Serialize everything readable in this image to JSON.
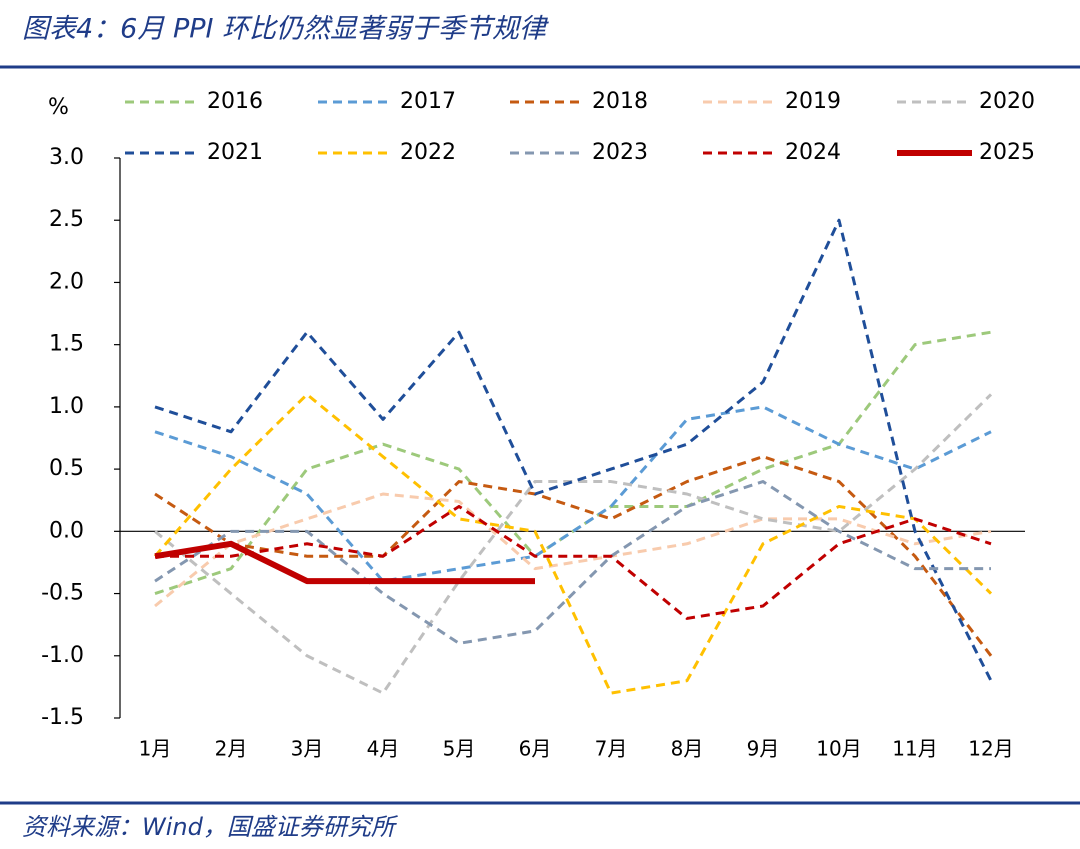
{
  "chart_data": {
    "type": "line",
    "title": "图表4：6月 PPI 环比仍然显著弱于季节规律",
    "ylabel": "%",
    "source": "资料来源：Wind，国盛证券研究所",
    "categories": [
      "1月",
      "2月",
      "3月",
      "4月",
      "5月",
      "6月",
      "7月",
      "8月",
      "9月",
      "10月",
      "11月",
      "12月"
    ],
    "ylim": [
      -1.5,
      3.0
    ],
    "yticks": [
      {
        "value": 3.0,
        "label": "3.0"
      },
      2.5,
      {
        "value": 2.0,
        "label": "2.0"
      },
      1.5,
      {
        "value": 1.0,
        "label": "1.0"
      },
      0.5,
      {
        "value": 0.0,
        "label": "0.0"
      },
      -0.5,
      {
        "value": -1.0,
        "label": "-1.0"
      },
      -1.5
    ],
    "series": [
      {
        "name": "2016",
        "color": "#9dc97b",
        "line_style": "dashed",
        "values": [
          -0.5,
          -0.3,
          0.5,
          0.7,
          0.5,
          -0.2,
          0.2,
          0.2,
          0.5,
          0.7,
          1.5,
          1.6
        ]
      },
      {
        "name": "2017",
        "color": "#5b9bd5",
        "line_style": "dashed",
        "values": [
          0.8,
          0.6,
          0.3,
          -0.4,
          -0.3,
          -0.2,
          0.2,
          0.9,
          1.0,
          0.7,
          0.5,
          0.8
        ]
      },
      {
        "name": "2018",
        "color": "#c55a11",
        "line_style": "dashed",
        "values": [
          0.3,
          -0.1,
          -0.2,
          -0.2,
          0.4,
          0.3,
          0.1,
          0.4,
          0.6,
          0.4,
          -0.2,
          -1.0
        ]
      },
      {
        "name": "2019",
        "color": "#f8cbad",
        "line_style": "dashed",
        "values": [
          -0.6,
          -0.1,
          0.1,
          0.3,
          0.24,
          -0.3,
          -0.2,
          -0.1,
          0.1,
          0.1,
          -0.1,
          0.0
        ]
      },
      {
        "name": "2020",
        "color": "#bfbfbf",
        "line_style": "dashed",
        "values": [
          0.0,
          -0.5,
          -1.0,
          -1.3,
          -0.4,
          0.4,
          0.4,
          0.3,
          0.1,
          0.0,
          0.5,
          1.1
        ]
      },
      {
        "name": "2021",
        "color": "#1f4e99",
        "line_style": "dashed",
        "values": [
          1.0,
          0.8,
          1.6,
          0.9,
          1.6,
          0.3,
          0.5,
          0.7,
          1.2,
          2.5,
          0.0,
          -1.2
        ]
      },
      {
        "name": "2022",
        "color": "#ffc000",
        "line_style": "dashed",
        "values": [
          -0.2,
          0.5,
          1.1,
          0.6,
          0.1,
          0.0,
          -1.3,
          -1.2,
          -0.1,
          0.2,
          0.1,
          -0.5
        ]
      },
      {
        "name": "2023",
        "color": "#8497b0",
        "line_style": "dashed",
        "values": [
          -0.4,
          0.0,
          0.0,
          -0.5,
          -0.9,
          -0.8,
          -0.2,
          0.2,
          0.4,
          0.0,
          -0.3,
          -0.3
        ]
      },
      {
        "name": "2024",
        "color": "#c00000",
        "line_style": "dashed",
        "values": [
          -0.2,
          -0.2,
          -0.1,
          -0.2,
          0.2,
          -0.2,
          -0.2,
          -0.7,
          -0.6,
          -0.1,
          0.1,
          -0.1
        ]
      },
      {
        "name": "2025",
        "color": "#c00000",
        "line_style": "solid",
        "values": [
          -0.2,
          -0.1,
          -0.4,
          -0.4,
          -0.4,
          -0.4,
          null,
          null,
          null,
          null,
          null,
          null
        ]
      }
    ]
  }
}
